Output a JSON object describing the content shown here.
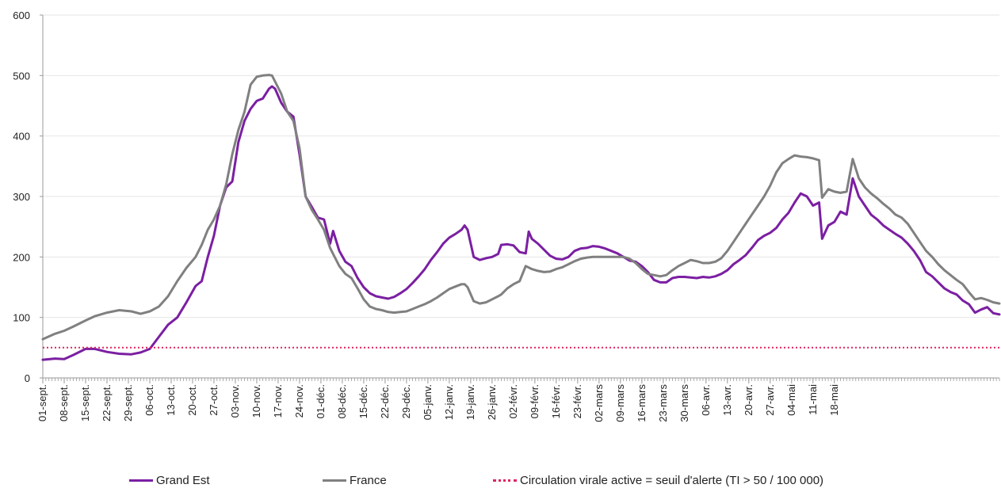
{
  "chart_data": {
    "type": "line",
    "title": "",
    "xlabel": "",
    "ylabel": "",
    "ylim": [
      0,
      600
    ],
    "yticks": [
      0,
      100,
      200,
      300,
      400,
      500,
      600
    ],
    "grid": "horizontal",
    "legend_position": "bottom",
    "x_tick_labels": [
      "01-sept.",
      "08-sept.",
      "15-sept.",
      "22-sept.",
      "29-sept.",
      "06-oct.",
      "13-oct.",
      "20-oct.",
      "27-oct.",
      "03-nov.",
      "10-nov.",
      "17-nov.",
      "24-nov.",
      "01-déc.",
      "08-déc.",
      "15-déc.",
      "22-déc.",
      "29-déc.",
      "05-janv.",
      "12-janv.",
      "19-janv.",
      "26-janv.",
      "02-févr.",
      "09-févr.",
      "16-févr.",
      "23-févr.",
      "02-mars",
      "09-mars",
      "16-mars",
      "23-mars",
      "30-mars",
      "06-avr.",
      "13-avr.",
      "20-avr.",
      "27-avr.",
      "04-mai",
      "11-mai",
      "18-mai"
    ],
    "x_day_range": [
      0,
      259
    ],
    "series": [
      {
        "name": "Grand Est",
        "color": "#7b1fa2",
        "points": [
          [
            0,
            30
          ],
          [
            4,
            32
          ],
          [
            7,
            31
          ],
          [
            10,
            38
          ],
          [
            14,
            48
          ],
          [
            17,
            48
          ],
          [
            21,
            43
          ],
          [
            25,
            40
          ],
          [
            29,
            39
          ],
          [
            32,
            42
          ],
          [
            35,
            48
          ],
          [
            38,
            68
          ],
          [
            41,
            88
          ],
          [
            44,
            100
          ],
          [
            47,
            125
          ],
          [
            50,
            152
          ],
          [
            52,
            160
          ],
          [
            54,
            200
          ],
          [
            56,
            235
          ],
          [
            58,
            285
          ],
          [
            60,
            315
          ],
          [
            62,
            325
          ],
          [
            64,
            390
          ],
          [
            66,
            425
          ],
          [
            68,
            445
          ],
          [
            70,
            458
          ],
          [
            72,
            462
          ],
          [
            74,
            478
          ],
          [
            75,
            482
          ],
          [
            76,
            478
          ],
          [
            78,
            455
          ],
          [
            80,
            440
          ],
          [
            82,
            432
          ],
          [
            84,
            370
          ],
          [
            86,
            300
          ],
          [
            88,
            283
          ],
          [
            90,
            265
          ],
          [
            92,
            262
          ],
          [
            94,
            222
          ],
          [
            95,
            243
          ],
          [
            97,
            210
          ],
          [
            99,
            192
          ],
          [
            101,
            185
          ],
          [
            103,
            165
          ],
          [
            105,
            150
          ],
          [
            107,
            140
          ],
          [
            109,
            135
          ],
          [
            111,
            133
          ],
          [
            113,
            131
          ],
          [
            115,
            134
          ],
          [
            117,
            140
          ],
          [
            119,
            147
          ],
          [
            121,
            157
          ],
          [
            123,
            168
          ],
          [
            125,
            180
          ],
          [
            127,
            195
          ],
          [
            129,
            208
          ],
          [
            131,
            222
          ],
          [
            133,
            232
          ],
          [
            135,
            238
          ],
          [
            137,
            245
          ],
          [
            138,
            252
          ],
          [
            139,
            245
          ],
          [
            141,
            200
          ],
          [
            143,
            195
          ],
          [
            145,
            198
          ],
          [
            147,
            200
          ],
          [
            149,
            205
          ],
          [
            150,
            220
          ],
          [
            152,
            221
          ],
          [
            154,
            219
          ],
          [
            156,
            208
          ],
          [
            158,
            206
          ],
          [
            159,
            242
          ],
          [
            160,
            230
          ],
          [
            162,
            222
          ],
          [
            164,
            212
          ],
          [
            166,
            202
          ],
          [
            168,
            197
          ],
          [
            170,
            196
          ],
          [
            172,
            200
          ],
          [
            174,
            210
          ],
          [
            176,
            214
          ],
          [
            178,
            215
          ],
          [
            180,
            218
          ],
          [
            182,
            217
          ],
          [
            184,
            214
          ],
          [
            186,
            210
          ],
          [
            188,
            206
          ],
          [
            190,
            200
          ],
          [
            192,
            194
          ],
          [
            194,
            192
          ],
          [
            196,
            185
          ],
          [
            198,
            175
          ],
          [
            200,
            162
          ],
          [
            202,
            158
          ],
          [
            204,
            158
          ],
          [
            206,
            165
          ],
          [
            208,
            167
          ],
          [
            210,
            167
          ],
          [
            212,
            166
          ],
          [
            214,
            165
          ],
          [
            216,
            167
          ],
          [
            218,
            166
          ],
          [
            220,
            168
          ],
          [
            222,
            172
          ],
          [
            224,
            178
          ],
          [
            226,
            188
          ],
          [
            228,
            195
          ],
          [
            230,
            203
          ],
          [
            232,
            215
          ],
          [
            234,
            228
          ],
          [
            236,
            235
          ],
          [
            238,
            240
          ],
          [
            240,
            248
          ],
          [
            242,
            262
          ],
          [
            244,
            273
          ],
          [
            246,
            290
          ],
          [
            248,
            305
          ],
          [
            250,
            300
          ],
          [
            252,
            285
          ],
          [
            254,
            290
          ],
          [
            255,
            230
          ],
          [
            257,
            252
          ],
          [
            259,
            258
          ],
          [
            261,
            275
          ],
          [
            263,
            270
          ],
          [
            265,
            330
          ],
          [
            267,
            300
          ],
          [
            269,
            285
          ],
          [
            271,
            270
          ],
          [
            273,
            262
          ],
          [
            275,
            252
          ],
          [
            277,
            245
          ],
          [
            279,
            238
          ],
          [
            281,
            232
          ],
          [
            283,
            222
          ],
          [
            285,
            210
          ],
          [
            287,
            195
          ],
          [
            289,
            175
          ],
          [
            291,
            168
          ],
          [
            293,
            158
          ],
          [
            295,
            148
          ],
          [
            297,
            142
          ],
          [
            299,
            138
          ],
          [
            301,
            128
          ],
          [
            303,
            122
          ],
          [
            305,
            108
          ],
          [
            307,
            113
          ],
          [
            309,
            117
          ],
          [
            311,
            107
          ],
          [
            313,
            105
          ]
        ]
      },
      {
        "name": "France",
        "color": "#808080",
        "points": [
          [
            0,
            64
          ],
          [
            4,
            73
          ],
          [
            7,
            78
          ],
          [
            10,
            85
          ],
          [
            14,
            95
          ],
          [
            17,
            102
          ],
          [
            21,
            108
          ],
          [
            25,
            112
          ],
          [
            29,
            110
          ],
          [
            32,
            106
          ],
          [
            35,
            110
          ],
          [
            38,
            118
          ],
          [
            41,
            135
          ],
          [
            44,
            160
          ],
          [
            47,
            182
          ],
          [
            50,
            200
          ],
          [
            52,
            220
          ],
          [
            54,
            245
          ],
          [
            56,
            262
          ],
          [
            58,
            285
          ],
          [
            60,
            320
          ],
          [
            62,
            370
          ],
          [
            64,
            410
          ],
          [
            66,
            440
          ],
          [
            68,
            485
          ],
          [
            70,
            498
          ],
          [
            72,
            500
          ],
          [
            74,
            501
          ],
          [
            75,
            500
          ],
          [
            76,
            490
          ],
          [
            78,
            470
          ],
          [
            80,
            440
          ],
          [
            82,
            425
          ],
          [
            84,
            380
          ],
          [
            86,
            300
          ],
          [
            88,
            278
          ],
          [
            90,
            262
          ],
          [
            92,
            245
          ],
          [
            94,
            215
          ],
          [
            95,
            205
          ],
          [
            97,
            185
          ],
          [
            99,
            172
          ],
          [
            101,
            165
          ],
          [
            103,
            148
          ],
          [
            105,
            130
          ],
          [
            107,
            118
          ],
          [
            109,
            114
          ],
          [
            111,
            112
          ],
          [
            113,
            109
          ],
          [
            115,
            108
          ],
          [
            117,
            109
          ],
          [
            119,
            110
          ],
          [
            121,
            114
          ],
          [
            123,
            118
          ],
          [
            125,
            122
          ],
          [
            127,
            127
          ],
          [
            129,
            133
          ],
          [
            131,
            140
          ],
          [
            133,
            147
          ],
          [
            135,
            151
          ],
          [
            137,
            155
          ],
          [
            138,
            155
          ],
          [
            139,
            150
          ],
          [
            141,
            127
          ],
          [
            143,
            123
          ],
          [
            145,
            125
          ],
          [
            147,
            130
          ],
          [
            149,
            135
          ],
          [
            150,
            138
          ],
          [
            152,
            148
          ],
          [
            154,
            155
          ],
          [
            156,
            160
          ],
          [
            158,
            185
          ],
          [
            160,
            180
          ],
          [
            162,
            177
          ],
          [
            164,
            175
          ],
          [
            166,
            176
          ],
          [
            168,
            180
          ],
          [
            170,
            183
          ],
          [
            172,
            188
          ],
          [
            174,
            193
          ],
          [
            176,
            197
          ],
          [
            178,
            199
          ],
          [
            180,
            200
          ],
          [
            182,
            200
          ],
          [
            184,
            200
          ],
          [
            186,
            200
          ],
          [
            188,
            200
          ],
          [
            190,
            200
          ],
          [
            192,
            197
          ],
          [
            194,
            190
          ],
          [
            196,
            180
          ],
          [
            198,
            172
          ],
          [
            200,
            170
          ],
          [
            202,
            168
          ],
          [
            204,
            170
          ],
          [
            206,
            178
          ],
          [
            208,
            185
          ],
          [
            210,
            190
          ],
          [
            212,
            195
          ],
          [
            214,
            193
          ],
          [
            216,
            190
          ],
          [
            218,
            190
          ],
          [
            220,
            192
          ],
          [
            222,
            198
          ],
          [
            224,
            210
          ],
          [
            226,
            225
          ],
          [
            228,
            240
          ],
          [
            230,
            255
          ],
          [
            232,
            270
          ],
          [
            234,
            285
          ],
          [
            236,
            300
          ],
          [
            238,
            318
          ],
          [
            240,
            340
          ],
          [
            242,
            355
          ],
          [
            244,
            362
          ],
          [
            246,
            368
          ],
          [
            248,
            366
          ],
          [
            250,
            365
          ],
          [
            252,
            363
          ],
          [
            254,
            360
          ],
          [
            255,
            298
          ],
          [
            257,
            312
          ],
          [
            259,
            308
          ],
          [
            261,
            306
          ],
          [
            263,
            308
          ],
          [
            265,
            362
          ],
          [
            267,
            330
          ],
          [
            269,
            315
          ],
          [
            271,
            305
          ],
          [
            273,
            297
          ],
          [
            275,
            288
          ],
          [
            277,
            280
          ],
          [
            279,
            270
          ],
          [
            281,
            265
          ],
          [
            283,
            255
          ],
          [
            285,
            240
          ],
          [
            287,
            225
          ],
          [
            289,
            210
          ],
          [
            291,
            200
          ],
          [
            293,
            188
          ],
          [
            295,
            178
          ],
          [
            297,
            170
          ],
          [
            299,
            162
          ],
          [
            301,
            155
          ],
          [
            303,
            142
          ],
          [
            305,
            130
          ],
          [
            307,
            132
          ],
          [
            309,
            129
          ],
          [
            311,
            125
          ],
          [
            313,
            123
          ]
        ]
      },
      {
        "name": "Circulation virale active = seuil d'alerte (TI > 50 / 100 000)",
        "color": "#e0245e",
        "style": "dotted",
        "points": [
          [
            0,
            50
          ],
          [
            313,
            50
          ]
        ]
      }
    ]
  },
  "legend": {
    "grand_est": "Grand Est",
    "france": "France",
    "threshold": "Circulation virale active = seuil d'alerte (TI > 50 / 100 000)"
  }
}
